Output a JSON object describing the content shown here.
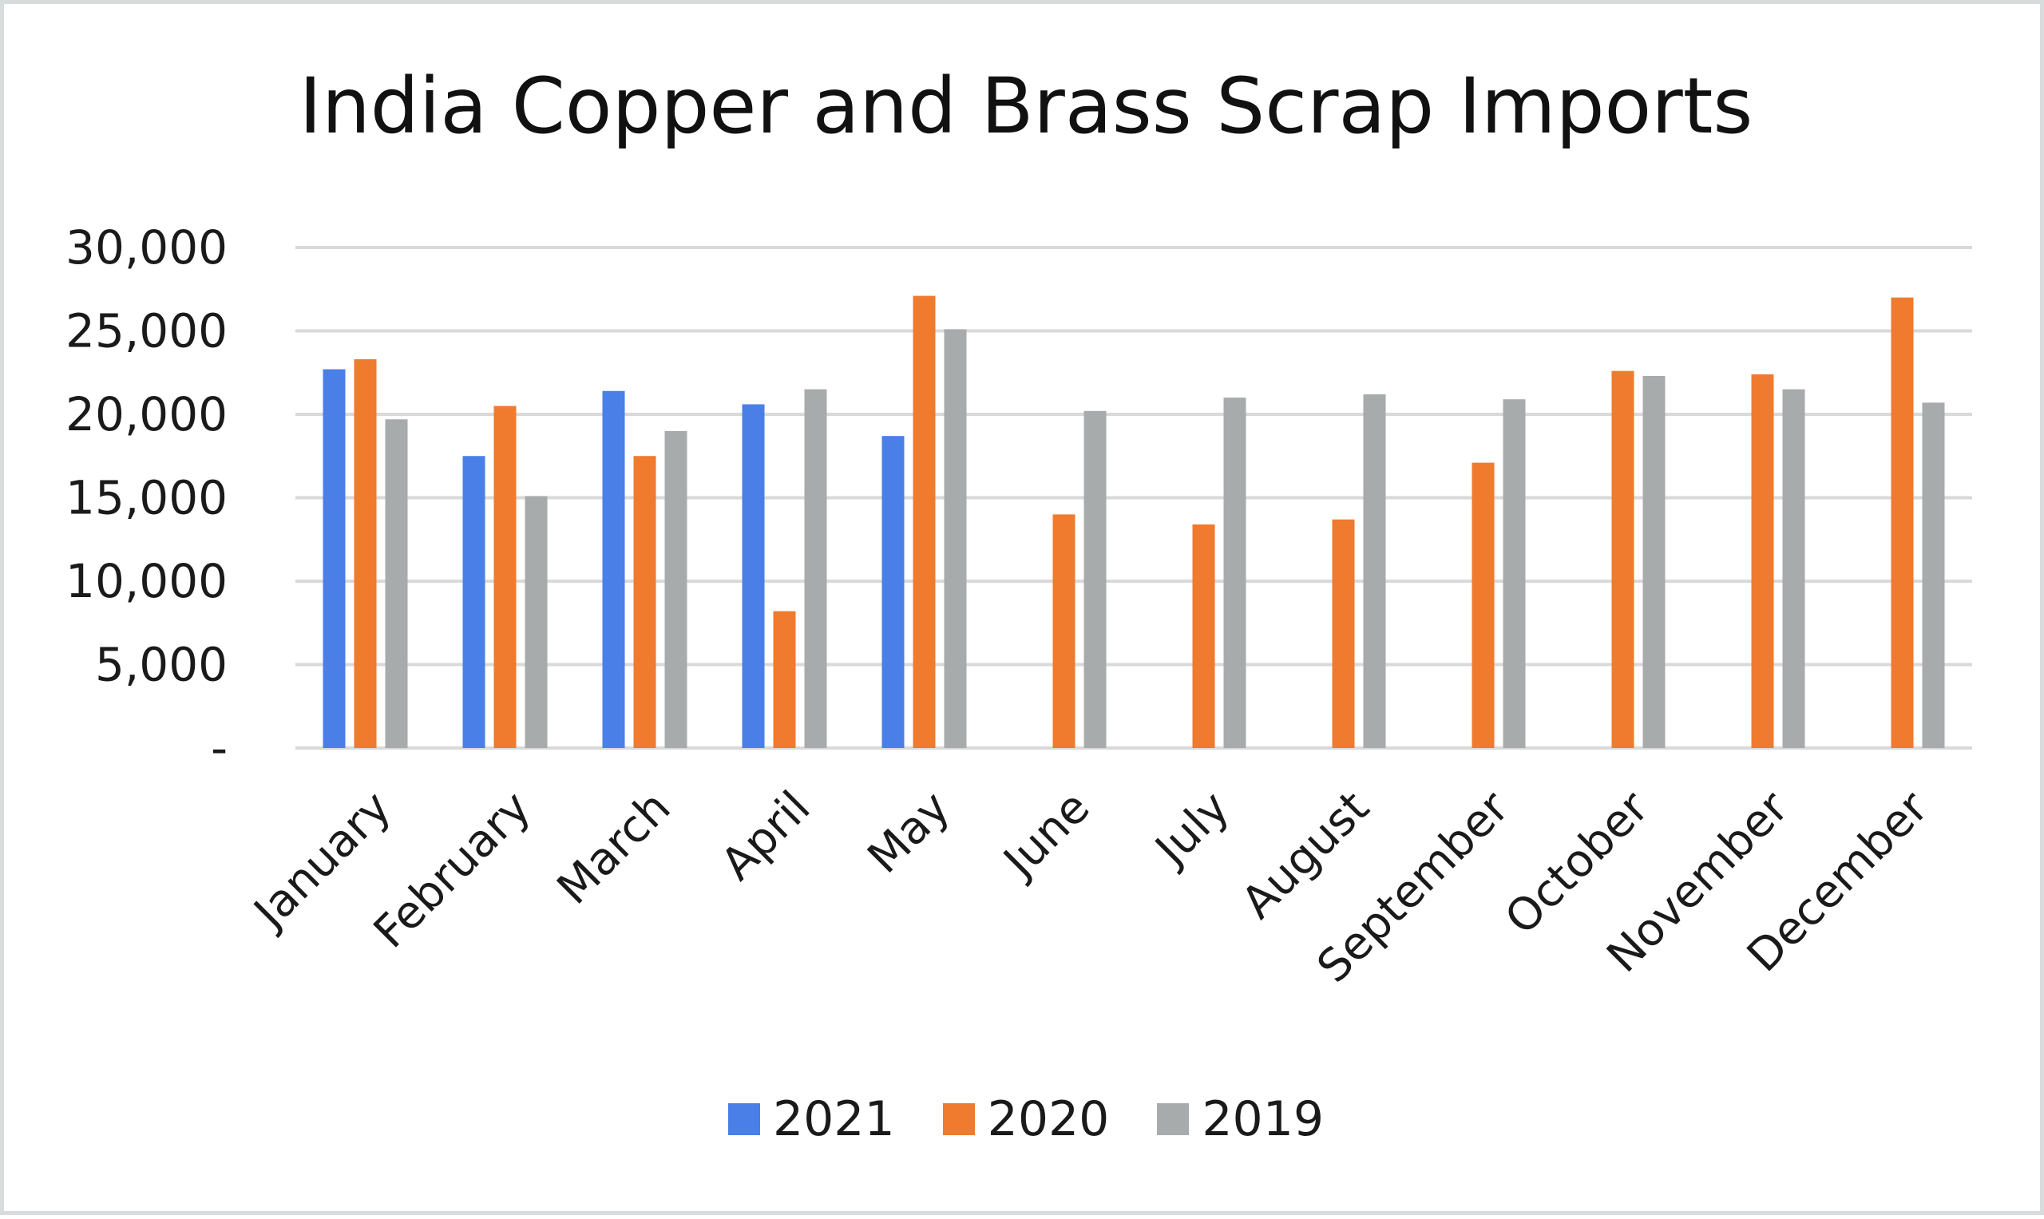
{
  "chart_data": {
    "type": "bar",
    "title": "India Copper and Brass Scrap Imports",
    "xlabel": "",
    "ylabel": "",
    "categories": [
      "January",
      "February",
      "March",
      "April",
      "May",
      "June",
      "July",
      "August",
      "September",
      "October",
      "November",
      "December"
    ],
    "series": [
      {
        "name": "2021",
        "color": "#4a7fe8",
        "values": [
          22700,
          17500,
          21400,
          20600,
          18700,
          null,
          null,
          null,
          null,
          null,
          null,
          null
        ]
      },
      {
        "name": "2020",
        "color": "#f07a2e",
        "values": [
          23300,
          20500,
          17500,
          8200,
          27100,
          14000,
          13400,
          13700,
          17100,
          22600,
          22400,
          27000
        ]
      },
      {
        "name": "2019",
        "color": "#a7abab",
        "values": [
          19700,
          15100,
          19000,
          21500,
          25100,
          20200,
          21000,
          21200,
          20900,
          22300,
          21500,
          20700
        ]
      }
    ],
    "ylim": [
      0,
      30000
    ],
    "yticks": [
      0,
      5000,
      10000,
      15000,
      20000,
      25000,
      30000
    ],
    "ytick_labels": [
      "-",
      "5,000",
      "10,000",
      "15,000",
      "20,000",
      "25,000",
      "30,000"
    ],
    "grid": true,
    "legend": "bottom-center"
  }
}
